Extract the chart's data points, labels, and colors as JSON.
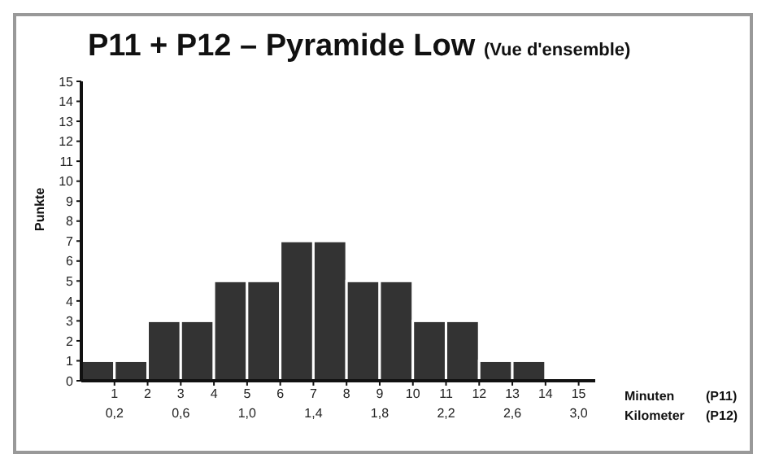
{
  "chart_data": {
    "type": "histogram",
    "title": "P11 + P12 – Pyramide Low",
    "subtitle": "(Vue d'ensemble)",
    "ylabel": "Punkte",
    "xlabel": "Minuten",
    "x2label": "Kilometer",
    "bins": [
      0,
      1,
      2,
      3,
      4,
      5,
      6,
      7,
      8,
      9,
      10,
      11,
      12,
      13,
      14
    ],
    "values": [
      1,
      1,
      3,
      3,
      5,
      5,
      7,
      7,
      5,
      5,
      3,
      3,
      1,
      1
    ],
    "color": "#333333",
    "xlim": [
      0,
      15.5
    ],
    "xticks": [
      1,
      2,
      3,
      4,
      5,
      6,
      7,
      8,
      9,
      10,
      11,
      12,
      13,
      14,
      15
    ],
    "x2lim": [
      0,
      3.1
    ],
    "x2ticks": [
      {
        "value": 0.2,
        "label": "0,2"
      },
      {
        "value": 0.6,
        "label": "0,6"
      },
      {
        "value": 1.0,
        "label": "1,0"
      },
      {
        "value": 1.4,
        "label": "1,4"
      },
      {
        "value": 1.8,
        "label": "1,8"
      },
      {
        "value": 2.2,
        "label": "2,2"
      },
      {
        "value": 2.6,
        "label": "2,6"
      },
      {
        "value": 3.0,
        "label": "3,0"
      }
    ],
    "ylim": [
      0,
      15
    ],
    "yticks": [
      0,
      1,
      2,
      3,
      4,
      5,
      6,
      7,
      8,
      9,
      10,
      11,
      12,
      13,
      14,
      15
    ],
    "annotations": [
      "(P11)",
      "(P12)"
    ],
    "grid": false,
    "legend": false
  }
}
